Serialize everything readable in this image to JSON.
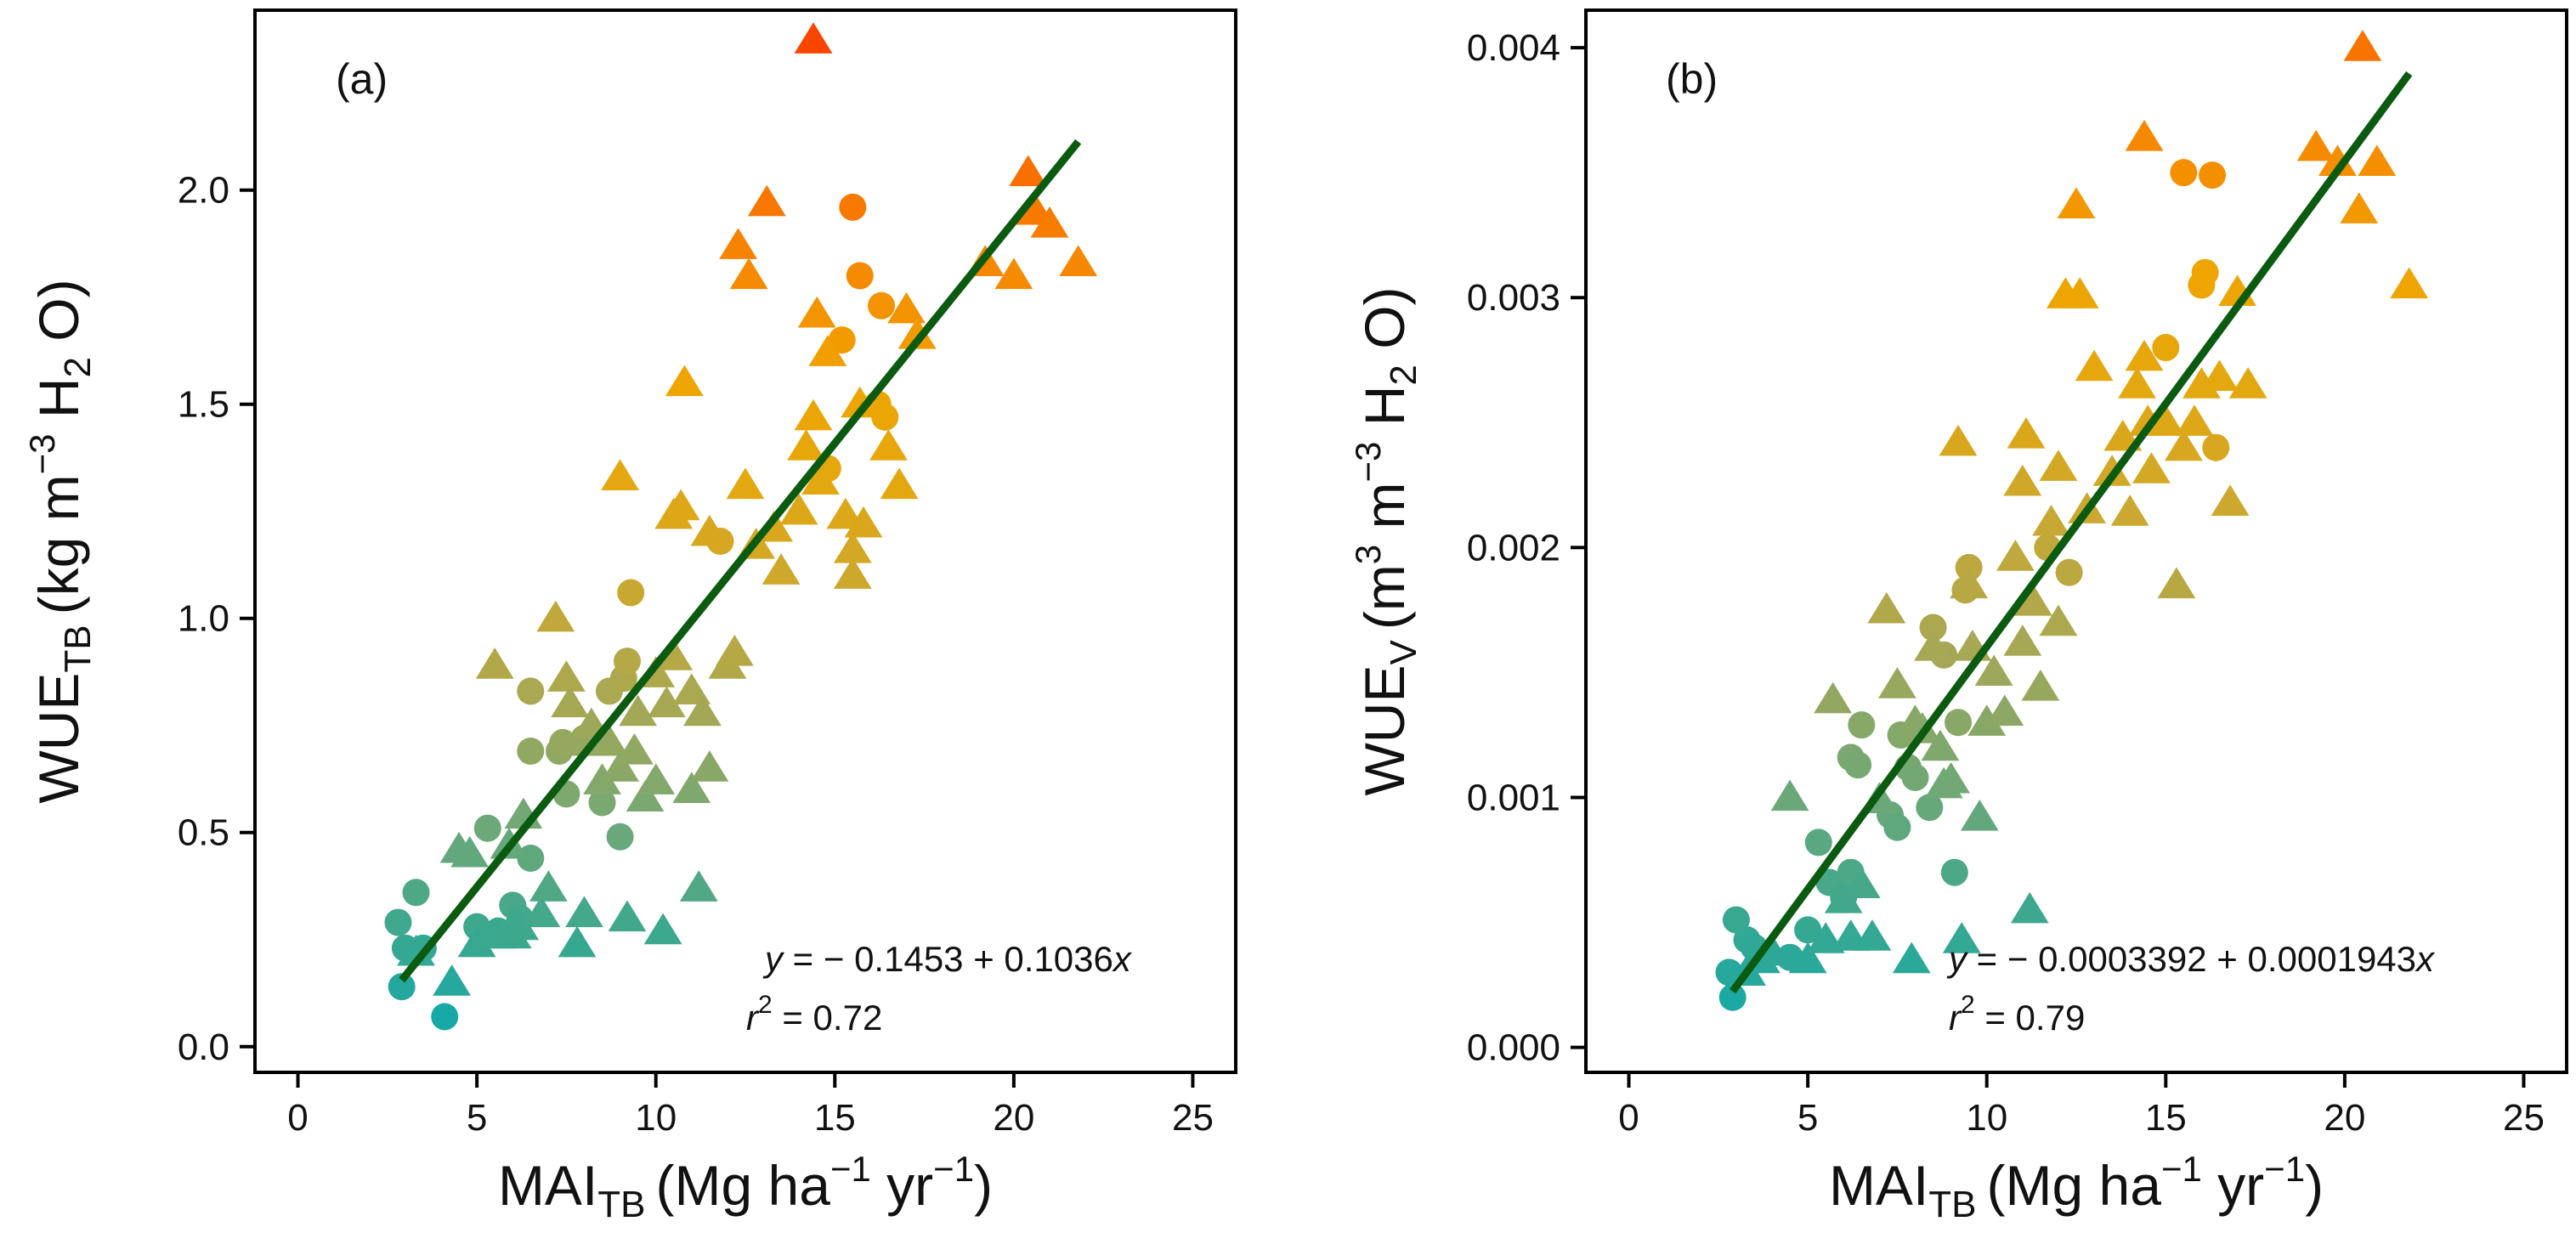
{
  "chart_data": [
    {
      "type": "scatter",
      "panel_label": "(a)",
      "xlabel": {
        "main": "MAI",
        "sub": "TB",
        "units": "(Mg ha",
        "sup1": "−1",
        "mid": " yr",
        "sup2": "−1",
        "close": ")"
      },
      "ylabel": {
        "main": "WUE",
        "sub": "TB",
        "units": "(kg m",
        "sup": "−3",
        "h2o_a": " H",
        "h2o_sub": "2",
        "h2o_b": " O)"
      },
      "xlim": [
        -1.2,
        26.2
      ],
      "ylim": [
        -0.06,
        2.42
      ],
      "xticks": [
        0,
        5,
        10,
        15,
        20,
        25
      ],
      "xtick_labels": [
        "0",
        "5",
        "10",
        "15",
        "20",
        "25"
      ],
      "yticks": [
        0.0,
        0.5,
        1.0,
        1.5,
        2.0
      ],
      "ytick_labels": [
        "0.0",
        "0.5",
        "1.0",
        "1.5",
        "2.0"
      ],
      "fit": {
        "intercept": -0.1453,
        "slope": 0.1036,
        "x_range": [
          2.9,
          21.8
        ]
      },
      "equation": {
        "y": "y",
        "eq": " = ",
        "minus": "−",
        "intercept": " 0.1453 ",
        "plus": "+",
        "slope": " 0.1036",
        "x": "x"
      },
      "r2": {
        "r": "r",
        "sup": "2",
        "value": " = 0.72"
      },
      "series": [
        {
          "name": "circle",
          "marker": "circle",
          "points": [
            [
              2.9,
              0.14
            ],
            [
              3.0,
              0.23
            ],
            [
              2.8,
              0.29
            ],
            [
              3.3,
              0.36
            ],
            [
              3.5,
              0.23
            ],
            [
              4.1,
              0.07
            ],
            [
              5.0,
              0.28
            ],
            [
              5.3,
              0.51
            ],
            [
              5.6,
              0.27
            ],
            [
              6.0,
              0.33
            ],
            [
              6.2,
              0.3
            ],
            [
              6.5,
              0.44
            ],
            [
              6.5,
              0.69
            ],
            [
              6.5,
              0.83
            ],
            [
              7.3,
              0.69
            ],
            [
              7.4,
              0.71
            ],
            [
              7.5,
              0.59
            ],
            [
              8.0,
              0.72
            ],
            [
              8.5,
              0.57
            ],
            [
              8.7,
              0.83
            ],
            [
              9.0,
              0.49
            ],
            [
              9.1,
              0.86
            ],
            [
              9.2,
              0.9
            ],
            [
              9.3,
              1.06
            ],
            [
              11.8,
              1.18
            ],
            [
              14.8,
              1.35
            ],
            [
              15.2,
              1.65
            ],
            [
              15.5,
              1.96
            ],
            [
              15.7,
              1.8
            ],
            [
              16.2,
              1.5
            ],
            [
              16.3,
              1.73
            ],
            [
              16.4,
              1.47
            ]
          ]
        },
        {
          "name": "triangle",
          "marker": "triangle",
          "points": [
            [
              3.3,
              0.22
            ],
            [
              4.3,
              0.15
            ],
            [
              4.5,
              0.46
            ],
            [
              4.8,
              0.45
            ],
            [
              5.0,
              0.24
            ],
            [
              5.5,
              0.26
            ],
            [
              5.5,
              0.89
            ],
            [
              5.9,
              0.47
            ],
            [
              6.0,
              0.26
            ],
            [
              6.2,
              0.28
            ],
            [
              6.3,
              0.54
            ],
            [
              6.8,
              0.31
            ],
            [
              7.0,
              0.37
            ],
            [
              7.2,
              1.0
            ],
            [
              7.5,
              0.86
            ],
            [
              7.6,
              0.8
            ],
            [
              7.8,
              0.24
            ],
            [
              8.0,
              0.31
            ],
            [
              8.0,
              0.71
            ],
            [
              8.2,
              0.75
            ],
            [
              8.5,
              0.62
            ],
            [
              8.7,
              0.71
            ],
            [
              9.0,
              0.65
            ],
            [
              9.0,
              1.33
            ],
            [
              9.2,
              0.3
            ],
            [
              9.4,
              0.69
            ],
            [
              9.5,
              0.78
            ],
            [
              9.7,
              0.58
            ],
            [
              10.0,
              0.87
            ],
            [
              10.0,
              0.62
            ],
            [
              10.2,
              0.27
            ],
            [
              10.3,
              0.8
            ],
            [
              10.5,
              0.91
            ],
            [
              10.5,
              1.24
            ],
            [
              10.7,
              1.26
            ],
            [
              10.8,
              1.55
            ],
            [
              11.0,
              0.83
            ],
            [
              11.0,
              0.6
            ],
            [
              11.2,
              0.37
            ],
            [
              11.3,
              0.78
            ],
            [
              11.5,
              1.2
            ],
            [
              11.5,
              0.65
            ],
            [
              12.0,
              0.89
            ],
            [
              12.2,
              0.92
            ],
            [
              12.3,
              1.87
            ],
            [
              12.5,
              1.31
            ],
            [
              12.6,
              1.8
            ],
            [
              12.8,
              1.17
            ],
            [
              13.1,
              1.97
            ],
            [
              13.3,
              1.21
            ],
            [
              13.5,
              1.11
            ],
            [
              14.0,
              1.25
            ],
            [
              14.2,
              1.4
            ],
            [
              14.4,
              1.47
            ],
            [
              14.4,
              2.35
            ],
            [
              14.5,
              1.71
            ],
            [
              14.6,
              1.32
            ],
            [
              14.8,
              1.62
            ],
            [
              15.3,
              1.24
            ],
            [
              15.5,
              1.1
            ],
            [
              15.5,
              1.16
            ],
            [
              15.7,
              1.5
            ],
            [
              15.8,
              1.22
            ],
            [
              16.5,
              1.4
            ],
            [
              16.8,
              1.31
            ],
            [
              17.0,
              1.72
            ],
            [
              17.3,
              1.66
            ],
            [
              19.2,
              1.83
            ],
            [
              20.0,
              1.8
            ],
            [
              20.4,
              2.04
            ],
            [
              20.6,
              1.95
            ],
            [
              21.0,
              1.92
            ],
            [
              21.8,
              1.83
            ]
          ]
        }
      ]
    },
    {
      "type": "scatter",
      "panel_label": "(b)",
      "xlabel": {
        "main": "MAI",
        "sub": "TB",
        "units": "(Mg ha",
        "sup1": "−1",
        "mid": " yr",
        "sup2": "−1",
        "close": ")"
      },
      "ylabel": {
        "main": "WUE",
        "sub": "V",
        "units": "(m",
        "sup1": "3",
        "mid": " m",
        "sup": "−3",
        "h2o_a": " H",
        "h2o_sub": "2",
        "h2o_b": " O)"
      },
      "xlim": [
        -1.2,
        26.2
      ],
      "ylim": [
        -0.0001,
        0.00415
      ],
      "xticks": [
        0,
        5,
        10,
        15,
        20,
        25
      ],
      "xtick_labels": [
        "0",
        "5",
        "10",
        "15",
        "20",
        "25"
      ],
      "yticks": [
        0.0,
        0.001,
        0.002,
        0.003,
        0.004
      ],
      "ytick_labels": [
        "0.000",
        "0.001",
        "0.002",
        "0.003",
        "0.004"
      ],
      "fit": {
        "intercept": -0.0003392,
        "slope": 0.0001943,
        "x_range": [
          2.9,
          21.8
        ]
      },
      "equation": {
        "y": "y",
        "eq": " = ",
        "minus": "−",
        "intercept": " 0.0003392 ",
        "plus": "+",
        "slope": " 0.0001943",
        "x": "x"
      },
      "r2": {
        "r": "r",
        "sup": "2",
        "value": " = 0.79"
      },
      "series": [
        {
          "name": "circle",
          "marker": "circle",
          "points": [
            [
              2.9,
              0.0002
            ],
            [
              3.0,
              0.00051
            ],
            [
              2.8,
              0.0003
            ],
            [
              3.3,
              0.00043
            ],
            [
              3.5,
              0.0004
            ],
            [
              4.5,
              0.00036
            ],
            [
              5.0,
              0.00047
            ],
            [
              5.3,
              0.00082
            ],
            [
              5.6,
              0.00066
            ],
            [
              6.0,
              0.0006
            ],
            [
              6.2,
              0.0007
            ],
            [
              6.2,
              0.00116
            ],
            [
              6.4,
              0.00113
            ],
            [
              6.5,
              0.00129
            ],
            [
              7.3,
              0.00093
            ],
            [
              7.5,
              0.00088
            ],
            [
              7.6,
              0.00125
            ],
            [
              7.8,
              0.00112
            ],
            [
              8.0,
              0.00108
            ],
            [
              8.4,
              0.00096
            ],
            [
              8.5,
              0.00168
            ],
            [
              8.8,
              0.00157
            ],
            [
              9.1,
              0.0007
            ],
            [
              9.2,
              0.0013
            ],
            [
              9.4,
              0.00183
            ],
            [
              9.5,
              0.00192
            ],
            [
              11.7,
              0.002
            ],
            [
              12.3,
              0.0019
            ],
            [
              15.0,
              0.0028
            ],
            [
              15.5,
              0.0035
            ],
            [
              16.0,
              0.00305
            ],
            [
              16.1,
              0.0031
            ],
            [
              16.3,
              0.00349
            ],
            [
              16.4,
              0.0024
            ]
          ]
        },
        {
          "name": "triangle",
          "marker": "triangle",
          "points": [
            [
              3.3,
              0.0003
            ],
            [
              3.7,
              0.00035
            ],
            [
              4.0,
              0.00038
            ],
            [
              4.5,
              0.001
            ],
            [
              5.0,
              0.00035
            ],
            [
              5.5,
              0.00043
            ],
            [
              5.7,
              0.00139
            ],
            [
              6.0,
              0.00059
            ],
            [
              6.2,
              0.00044
            ],
            [
              6.5,
              0.00065
            ],
            [
              6.8,
              0.00044
            ],
            [
              7.0,
              0.00099
            ],
            [
              7.2,
              0.00175
            ],
            [
              7.5,
              0.00145
            ],
            [
              7.9,
              0.00035
            ],
            [
              8.0,
              0.0013
            ],
            [
              8.2,
              0.00127
            ],
            [
              8.5,
              0.0016
            ],
            [
              8.7,
              0.0012
            ],
            [
              8.8,
              0.00105
            ],
            [
              9.0,
              0.00107
            ],
            [
              9.2,
              0.00242
            ],
            [
              9.3,
              0.00043
            ],
            [
              9.5,
              0.00185
            ],
            [
              9.6,
              0.0016
            ],
            [
              9.8,
              0.00092
            ],
            [
              10.0,
              0.0013
            ],
            [
              10.2,
              0.0015
            ],
            [
              10.5,
              0.00134
            ],
            [
              10.8,
              0.00196
            ],
            [
              11.0,
              0.00226
            ],
            [
              11.0,
              0.00162
            ],
            [
              11.1,
              0.00245
            ],
            [
              11.2,
              0.00055
            ],
            [
              11.3,
              0.00178
            ],
            [
              11.5,
              0.00144
            ],
            [
              11.8,
              0.0021
            ],
            [
              12.0,
              0.00232
            ],
            [
              12.0,
              0.0017
            ],
            [
              12.2,
              0.00301
            ],
            [
              12.5,
              0.00337
            ],
            [
              12.6,
              0.00301
            ],
            [
              12.8,
              0.00215
            ],
            [
              13.0,
              0.00272
            ],
            [
              13.5,
              0.0023
            ],
            [
              13.8,
              0.00244
            ],
            [
              14.0,
              0.00214
            ],
            [
              14.2,
              0.00265
            ],
            [
              14.4,
              0.00276
            ],
            [
              14.4,
              0.00364
            ],
            [
              14.5,
              0.0025
            ],
            [
              14.6,
              0.00231
            ],
            [
              15.0,
              0.0025
            ],
            [
              15.3,
              0.00185
            ],
            [
              15.5,
              0.0024
            ],
            [
              15.8,
              0.0025
            ],
            [
              16.0,
              0.00265
            ],
            [
              16.5,
              0.00268
            ],
            [
              16.8,
              0.00218
            ],
            [
              17.0,
              0.00302
            ],
            [
              17.3,
              0.00265
            ],
            [
              19.2,
              0.0036
            ],
            [
              19.8,
              0.00354
            ],
            [
              20.4,
              0.00335
            ],
            [
              20.5,
              0.004
            ],
            [
              20.9,
              0.00354
            ],
            [
              21.8,
              0.00305
            ]
          ]
        }
      ]
    }
  ],
  "colors": {
    "fit_line": "#0a5a10",
    "gradient": [
      "#0aa9b0",
      "#3aa88f",
      "#6fa877",
      "#a3a857",
      "#c7a835",
      "#e2a711",
      "#f0a500",
      "#f68800",
      "#fa6a00",
      "#fa4500"
    ],
    "axis": "#000000"
  }
}
